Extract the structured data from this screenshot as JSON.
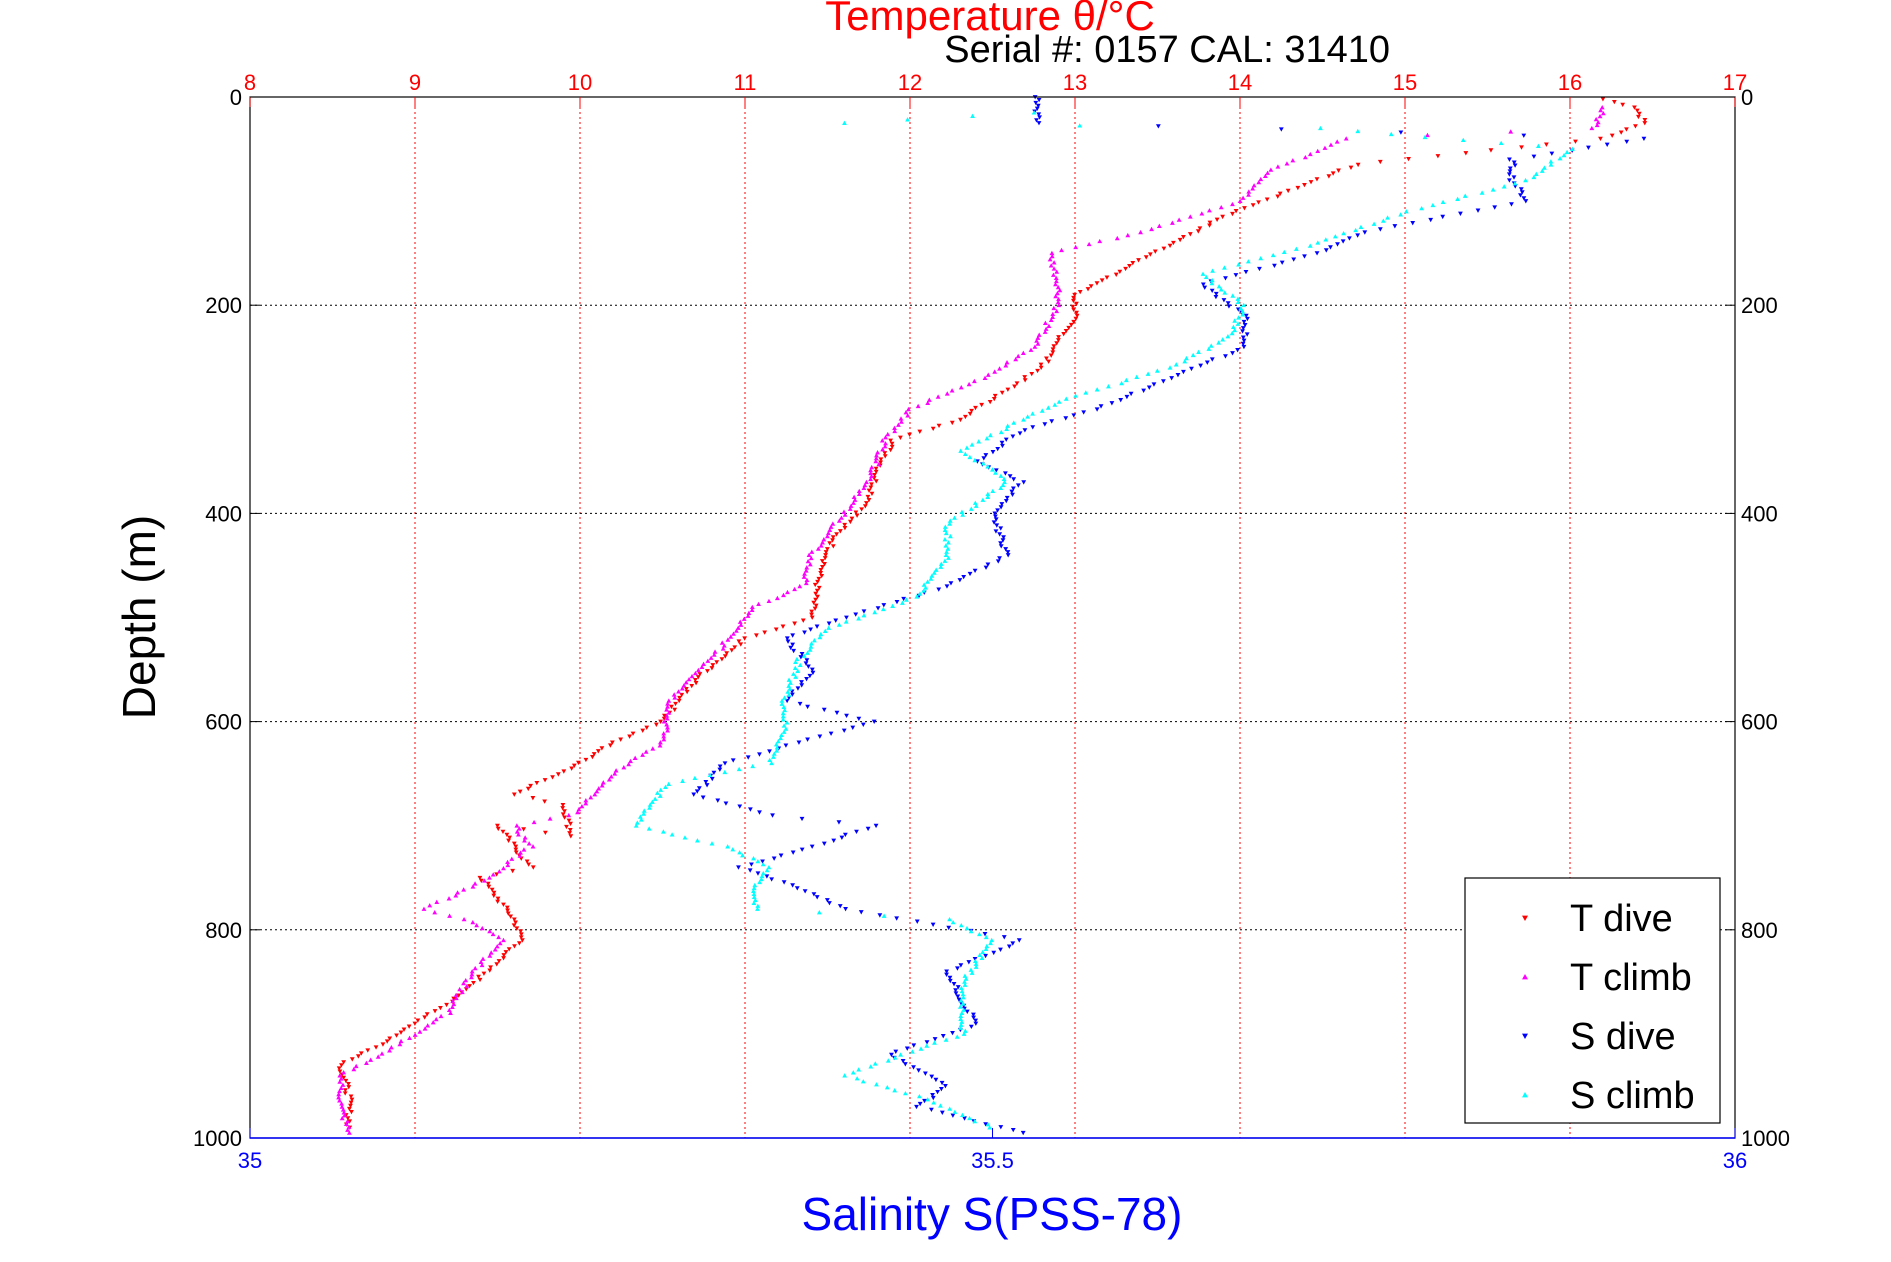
{
  "chart_data": {
    "type": "scatter",
    "title": "Temperature θ/°C",
    "subtitle": "Serial #: 0157  CAL: 31410",
    "xlabel": "Salinity S(PSS-78)",
    "ylabel": "Depth (m)",
    "temperature_axis": {
      "lim": [
        8,
        17
      ],
      "ticks": [
        8,
        9,
        10,
        11,
        12,
        13,
        14,
        15,
        16,
        17
      ],
      "tick_labels": [
        "8",
        "9",
        "10",
        "11",
        "12",
        "13",
        "14",
        "15",
        "16",
        "17"
      ],
      "color": "#ff0000"
    },
    "salinity_axis": {
      "lim": [
        35,
        36
      ],
      "ticks": [
        35,
        35.5,
        36
      ],
      "tick_labels": [
        "35",
        "35.5",
        "36"
      ],
      "color": "#0000ff"
    },
    "depth_axis": {
      "lim": [
        0,
        1000
      ],
      "reversed": true,
      "ticks": [
        0,
        200,
        400,
        600,
        800,
        1000
      ],
      "tick_labels": [
        "0",
        "200",
        "400",
        "600",
        "800",
        "1000"
      ]
    },
    "grid": true,
    "legend_position": "bottom-right",
    "series": [
      {
        "name": "T dive",
        "axis": "temperature",
        "color": "#ff0000",
        "marker": "triangle-down",
        "points": [
          [
            16.2,
            2
          ],
          [
            16.4,
            10
          ],
          [
            16.45,
            25
          ],
          [
            16.2,
            40
          ],
          [
            14.7,
            65
          ],
          [
            14.3,
            90
          ],
          [
            13.9,
            115
          ],
          [
            13.6,
            140
          ],
          [
            13.3,
            165
          ],
          [
            13.0,
            190
          ],
          [
            13.0,
            210
          ],
          [
            12.8,
            260
          ],
          [
            12.5,
            290
          ],
          [
            12.3,
            310
          ],
          [
            11.9,
            330
          ],
          [
            11.8,
            360
          ],
          [
            11.75,
            390
          ],
          [
            11.55,
            420
          ],
          [
            11.45,
            460
          ],
          [
            11.4,
            500
          ],
          [
            11.0,
            520
          ],
          [
            10.7,
            560
          ],
          [
            10.5,
            600
          ],
          [
            10.2,
            620
          ],
          [
            9.95,
            645
          ],
          [
            9.6,
            670
          ],
          [
            9.9,
            680
          ],
          [
            9.95,
            710
          ],
          [
            9.5,
            700
          ],
          [
            9.7,
            740
          ],
          [
            9.4,
            750
          ],
          [
            9.6,
            790
          ],
          [
            9.65,
            810
          ],
          [
            9.5,
            830
          ],
          [
            9.3,
            860
          ],
          [
            9.0,
            890
          ],
          [
            8.8,
            910
          ],
          [
            8.55,
            930
          ],
          [
            8.6,
            960
          ],
          [
            8.6,
            990
          ]
        ]
      },
      {
        "name": "T climb",
        "axis": "temperature",
        "color": "#ff00ff",
        "marker": "triangle-up",
        "points": [
          [
            16.2,
            10
          ],
          [
            16.15,
            30
          ],
          [
            14.65,
            40
          ],
          [
            14.2,
            70
          ],
          [
            14.0,
            100
          ],
          [
            13.4,
            130
          ],
          [
            12.85,
            150
          ],
          [
            12.9,
            180
          ],
          [
            12.9,
            200
          ],
          [
            12.75,
            240
          ],
          [
            12.45,
            270
          ],
          [
            12.0,
            300
          ],
          [
            11.85,
            330
          ],
          [
            11.75,
            370
          ],
          [
            11.55,
            410
          ],
          [
            11.4,
            440
          ],
          [
            11.35,
            470
          ],
          [
            11.05,
            490
          ],
          [
            10.85,
            530
          ],
          [
            10.55,
            580
          ],
          [
            10.5,
            620
          ],
          [
            10.2,
            650
          ],
          [
            9.95,
            690
          ],
          [
            9.6,
            700
          ],
          [
            9.7,
            720
          ],
          [
            9.45,
            750
          ],
          [
            9.2,
            770
          ],
          [
            9.05,
            780
          ],
          [
            9.3,
            790
          ],
          [
            9.55,
            810
          ],
          [
            9.35,
            840
          ],
          [
            9.2,
            880
          ],
          [
            8.9,
            910
          ],
          [
            8.55,
            940
          ],
          [
            8.55,
            970
          ],
          [
            8.6,
            995
          ]
        ]
      },
      {
        "name": "S dive",
        "axis": "salinity",
        "color": "#0000ff",
        "marker": "triangle-down",
        "points": [
          [
            35.53,
            0
          ],
          [
            35.53,
            25
          ],
          [
            35.94,
            40
          ],
          [
            35.85,
            60
          ],
          [
            35.85,
            80
          ],
          [
            35.86,
            100
          ],
          [
            35.75,
            130
          ],
          [
            35.72,
            150
          ],
          [
            35.64,
            180
          ],
          [
            35.67,
            210
          ],
          [
            35.67,
            240
          ],
          [
            35.62,
            270
          ],
          [
            35.57,
            300
          ],
          [
            35.52,
            320
          ],
          [
            35.49,
            350
          ],
          [
            35.52,
            370
          ],
          [
            35.5,
            400
          ],
          [
            35.51,
            440
          ],
          [
            35.47,
            470
          ],
          [
            35.4,
            500
          ],
          [
            35.36,
            520
          ],
          [
            35.38,
            550
          ],
          [
            35.36,
            580
          ],
          [
            35.42,
            600
          ],
          [
            35.32,
            640
          ],
          [
            35.3,
            670
          ],
          [
            35.35,
            690
          ],
          [
            35.42,
            700
          ],
          [
            35.38,
            720
          ],
          [
            35.33,
            740
          ],
          [
            35.37,
            760
          ],
          [
            35.4,
            780
          ],
          [
            35.52,
            810
          ],
          [
            35.47,
            840
          ],
          [
            35.48,
            870
          ],
          [
            35.49,
            890
          ],
          [
            35.43,
            920
          ],
          [
            35.47,
            950
          ],
          [
            35.45,
            970
          ],
          [
            35.52,
            995
          ]
        ]
      },
      {
        "name": "S climb",
        "axis": "salinity",
        "color": "#00ffff",
        "marker": "triangle-up",
        "points": [
          [
            35.53,
            15
          ],
          [
            35.4,
            25
          ],
          [
            35.72,
            30
          ],
          [
            35.89,
            50
          ],
          [
            35.86,
            80
          ],
          [
            35.78,
            110
          ],
          [
            35.72,
            140
          ],
          [
            35.64,
            170
          ],
          [
            35.67,
            200
          ],
          [
            35.66,
            230
          ],
          [
            35.62,
            260
          ],
          [
            35.55,
            290
          ],
          [
            35.52,
            310
          ],
          [
            35.48,
            340
          ],
          [
            35.51,
            370
          ],
          [
            35.47,
            410
          ],
          [
            35.47,
            440
          ],
          [
            35.45,
            480
          ],
          [
            35.39,
            510
          ],
          [
            35.37,
            540
          ],
          [
            35.36,
            580
          ],
          [
            35.36,
            610
          ],
          [
            35.35,
            640
          ],
          [
            35.28,
            660
          ],
          [
            35.26,
            700
          ],
          [
            35.32,
            720
          ],
          [
            35.35,
            740
          ],
          [
            35.34,
            760
          ],
          [
            35.34,
            780
          ],
          [
            35.47,
            790
          ],
          [
            35.5,
            810
          ],
          [
            35.49,
            830
          ],
          [
            35.48,
            850
          ],
          [
            35.48,
            880
          ],
          [
            35.48,
            900
          ],
          [
            35.44,
            920
          ],
          [
            35.4,
            940
          ],
          [
            35.45,
            960
          ],
          [
            35.5,
            990
          ]
        ]
      }
    ]
  }
}
